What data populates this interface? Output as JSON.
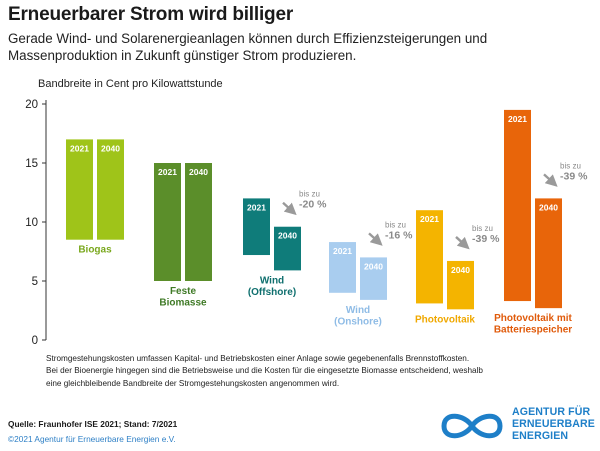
{
  "header": {
    "title": "Erneuerbarer Strom wird billiger",
    "subtitle": "Gerade Wind- und Solarenergieanlagen können durch Effizienzsteigerungen und Massenproduktion in Zukunft günstiger Strom produzieren."
  },
  "chart_data": {
    "type": "bar",
    "chart_kind": "floating range bars (min–max band per technology and year)",
    "unit_label": "Bandbreite in Cent pro Kilowattstunde",
    "ylim": [
      0,
      20
    ],
    "yticks": [
      0,
      5,
      10,
      15,
      20
    ],
    "grid": false,
    "series_years": [
      "2021",
      "2040"
    ],
    "categories": [
      {
        "label": [
          "Biogas"
        ],
        "color": "#9fc419",
        "label_color": "#7aa81e",
        "bars": [
          {
            "year": "2021",
            "min": 8.5,
            "max": 17.0
          },
          {
            "year": "2040",
            "min": 8.5,
            "max": 17.0
          }
        ]
      },
      {
        "label": [
          "Feste",
          "Biomasse"
        ],
        "color": "#5b8e2a",
        "label_color": "#3f7a26",
        "bars": [
          {
            "year": "2021",
            "min": 5.0,
            "max": 15.0
          },
          {
            "year": "2040",
            "min": 5.0,
            "max": 15.0
          }
        ]
      },
      {
        "label": [
          "Wind",
          "(Offshore)"
        ],
        "color": "#0f7c7a",
        "label_color": "#0f6f6e",
        "bars": [
          {
            "year": "2021",
            "min": 7.2,
            "max": 12.0
          },
          {
            "year": "2040",
            "min": 5.9,
            "max": 9.6
          }
        ],
        "reduction": {
          "prefix": "bis zu",
          "value": "-20 %"
        }
      },
      {
        "label": [
          "Wind",
          "(Onshore)"
        ],
        "color": "#a9cdef",
        "label_color": "#8fbce6",
        "bars": [
          {
            "year": "2021",
            "min": 4.0,
            "max": 8.3
          },
          {
            "year": "2040",
            "min": 3.4,
            "max": 7.0
          }
        ],
        "reduction": {
          "prefix": "bis zu",
          "value": "-16 %"
        }
      },
      {
        "label": [
          "Photovoltaik"
        ],
        "color": "#f4b400",
        "label_color": "#f0a800",
        "bars": [
          {
            "year": "2021",
            "min": 3.1,
            "max": 11.0
          },
          {
            "year": "2040",
            "min": 2.6,
            "max": 6.7
          }
        ],
        "reduction": {
          "prefix": "bis zu",
          "value": "-39 %"
        }
      },
      {
        "label": [
          "Photovoltaik mit",
          "Batteriespeicher"
        ],
        "color": "#e8650a",
        "label_color": "#e05a0a",
        "bars": [
          {
            "year": "2021",
            "min": 3.3,
            "max": 19.5
          },
          {
            "year": "2040",
            "min": 2.7,
            "max": 12.0
          }
        ],
        "reduction": {
          "prefix": "bis zu",
          "value": "-39 %"
        }
      }
    ]
  },
  "footnote": {
    "line1": "Stromgestehungskosten umfassen Kapital- und Betriebskosten einer Anlage sowie gegebenenfalls Brennstoffkosten.",
    "line2": "Bei der Bioenergie hingegen sind die Betriebsweise und die Kosten für die eingesetzte Biomasse entscheidend, weshalb",
    "line3": "eine gleichbleibende Bandbreite der Stromgestehungskosten angenommen wird."
  },
  "source": "Quelle: Fraunhofer ISE 2021; Stand: 7/2021",
  "copyright": "©2021 Agentur für Erneuerbare Energien e.V.",
  "logo": {
    "icon": "infinity-logo-icon",
    "line1": "AGENTUR FÜR",
    "line2": "ERNEUERBARE",
    "line3": "ENERGIEN",
    "color": "#1e7fc8"
  },
  "colors": {
    "arrow": "#9a9a9a",
    "reduction_text": "#8a8a8a"
  }
}
